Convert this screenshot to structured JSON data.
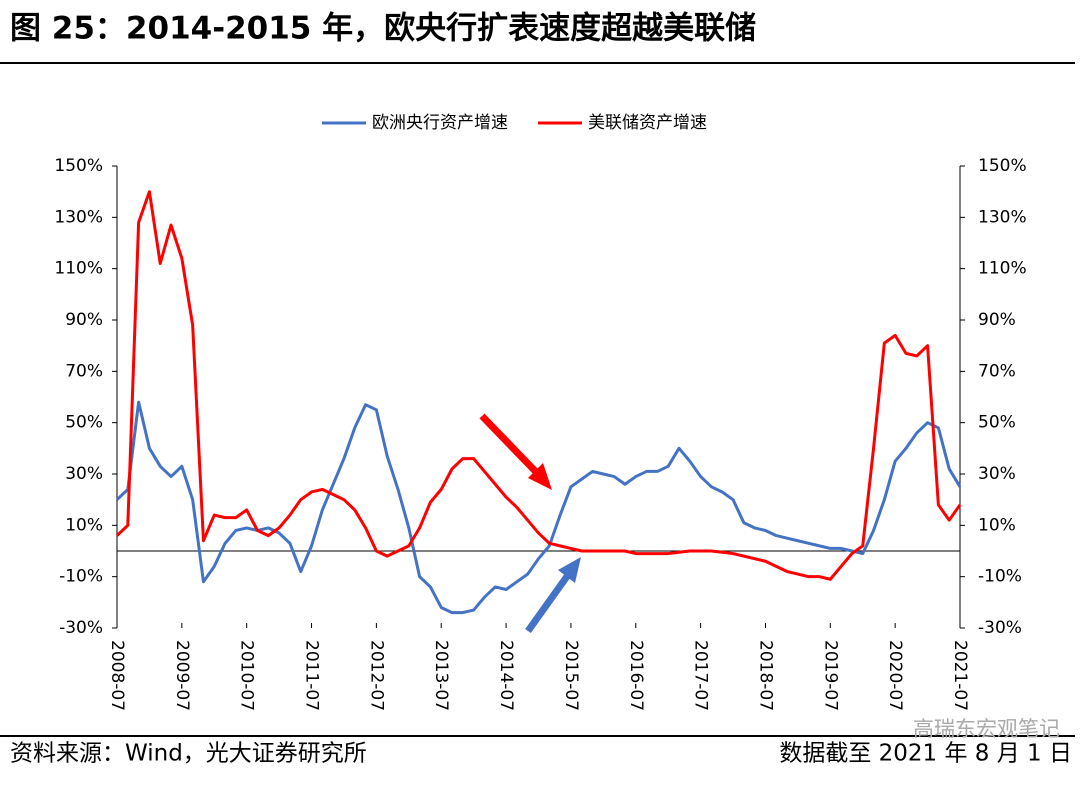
{
  "chart_data": {
    "type": "line",
    "title": "图 25：2014-2015 年，欧央行扩表速度超越美联储",
    "source": "资料来源：Wind，光大证券研究所",
    "note": "数据截至 2021 年 8 月 1 日",
    "watermark": "高瑞东宏观笔记",
    "x": [
      "2008-07",
      "2008-09",
      "2008-11",
      "2009-01",
      "2009-03",
      "2009-05",
      "2009-07",
      "2009-09",
      "2009-11",
      "2010-01",
      "2010-03",
      "2010-05",
      "2010-07",
      "2010-09",
      "2010-11",
      "2011-01",
      "2011-03",
      "2011-05",
      "2011-07",
      "2011-09",
      "2011-11",
      "2012-01",
      "2012-03",
      "2012-05",
      "2012-07",
      "2012-09",
      "2012-11",
      "2013-01",
      "2013-03",
      "2013-05",
      "2013-07",
      "2013-09",
      "2013-11",
      "2014-01",
      "2014-03",
      "2014-05",
      "2014-07",
      "2014-09",
      "2014-11",
      "2015-01",
      "2015-03",
      "2015-05",
      "2015-07",
      "2015-09",
      "2015-11",
      "2016-01",
      "2016-03",
      "2016-05",
      "2016-07",
      "2016-09",
      "2016-11",
      "2017-01",
      "2017-03",
      "2017-05",
      "2017-07",
      "2017-09",
      "2017-11",
      "2018-01",
      "2018-03",
      "2018-05",
      "2018-07",
      "2018-09",
      "2018-11",
      "2019-01",
      "2019-03",
      "2019-05",
      "2019-07",
      "2019-09",
      "2019-11",
      "2020-01",
      "2020-03",
      "2020-05",
      "2020-07",
      "2020-09",
      "2020-11",
      "2021-01",
      "2021-03",
      "2021-05",
      "2021-07"
    ],
    "xticks": [
      "2008-07",
      "2009-07",
      "2010-07",
      "2011-07",
      "2012-07",
      "2013-07",
      "2014-07",
      "2015-07",
      "2016-07",
      "2017-07",
      "2018-07",
      "2019-07",
      "2020-07",
      "2021-07"
    ],
    "ylim": [
      -30,
      150
    ],
    "yticks": [
      {
        "value": -30,
        "label": "-30%"
      },
      {
        "value": -10,
        "label": "-10%"
      },
      {
        "value": 10,
        "label": "10%"
      },
      {
        "value": 30,
        "label": "30%"
      },
      {
        "value": 50,
        "label": "50%"
      },
      {
        "value": 70,
        "label": "70%"
      },
      {
        "value": 90,
        "label": "90%"
      },
      {
        "value": 110,
        "label": "110%"
      },
      {
        "value": 130,
        "label": "130%"
      },
      {
        "value": 150,
        "label": "150%"
      }
    ],
    "y2lim": [
      -30,
      150
    ],
    "y2ticks": [
      {
        "value": -30,
        "label": "-30%"
      },
      {
        "value": -10,
        "label": "-10%"
      },
      {
        "value": 10,
        "label": "10%"
      },
      {
        "value": 30,
        "label": "30%"
      },
      {
        "value": 50,
        "label": "50%"
      },
      {
        "value": 70,
        "label": "70%"
      },
      {
        "value": 90,
        "label": "90%"
      },
      {
        "value": 110,
        "label": "110%"
      },
      {
        "value": 130,
        "label": "130%"
      },
      {
        "value": 150,
        "label": "150%"
      }
    ],
    "legend": "top",
    "series": [
      {
        "name": "欧洲央行资产增速",
        "color": "#4472c4",
        "values": [
          20,
          24,
          58,
          40,
          33,
          29,
          33,
          20,
          -12,
          -6,
          3,
          8,
          9,
          8,
          9,
          7,
          3,
          -8,
          2,
          16,
          26,
          36,
          48,
          57,
          55,
          37,
          24,
          9,
          -10,
          -14,
          -22,
          -24,
          -24,
          -23,
          -18,
          -14,
          -15,
          -12,
          -9,
          -3,
          2,
          14,
          25,
          28,
          31,
          30,
          29,
          26,
          29,
          31,
          31,
          33,
          40,
          35,
          29,
          25,
          23,
          20,
          11,
          9,
          8,
          6,
          5,
          4,
          3,
          2,
          1,
          1,
          0,
          -1,
          8,
          20,
          35,
          40,
          46,
          50,
          48,
          32,
          25
        ]
      },
      {
        "name": "美联储资产增速",
        "color": "#ff0000",
        "axis": "y2",
        "values": [
          6,
          10,
          128,
          140,
          112,
          127,
          114,
          88,
          4,
          14,
          13,
          13,
          16,
          8,
          6,
          9,
          14,
          20,
          23,
          24,
          22,
          20,
          16,
          9,
          0,
          -2,
          0,
          2,
          9,
          19,
          24,
          32,
          36,
          36,
          31,
          26,
          21,
          17,
          12,
          7,
          3,
          2,
          1,
          0,
          0,
          0,
          0,
          0,
          -1,
          -1,
          -1,
          -1,
          -0.5,
          0,
          0,
          0,
          -0.5,
          -1,
          -2,
          -3,
          -4,
          -6,
          -8,
          -9,
          -10,
          -10,
          -11,
          -6,
          -1,
          2,
          40,
          81,
          84,
          77,
          76,
          80,
          18,
          12,
          18
        ]
      }
    ]
  }
}
